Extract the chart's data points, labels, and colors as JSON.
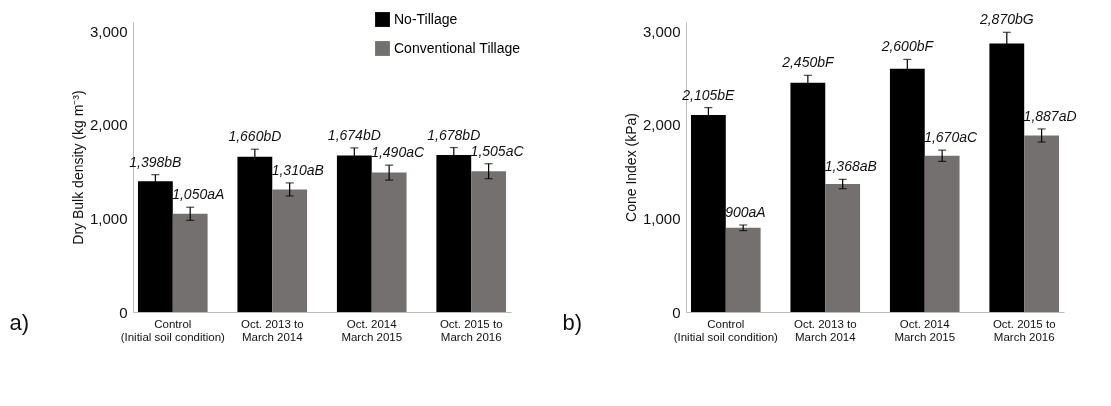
{
  "chart_data": [
    {
      "type": "bar",
      "ylabel": "Dry Bulk density (kg m⁻³)",
      "categories": [
        "Control\n(Initial soil condition)",
        "Oct. 2013 to\nMarch 2014",
        "Oct. 2014\nMarch 2015",
        "Oct. 2015 to\nMarch 2016"
      ],
      "series": [
        {
          "name": "No-Tillage",
          "color": "#000000",
          "values": [
            1398,
            1660,
            1674,
            1678
          ],
          "errors": [
            70,
            80,
            80,
            80
          ],
          "value_labels": [
            "1,398bB",
            "1,660bD",
            "1,674bD",
            "1,678bD"
          ]
        },
        {
          "name": "Conventional Tillage",
          "color": "#757070",
          "values": [
            1050,
            1310,
            1490,
            1505
          ],
          "errors": [
            70,
            70,
            80,
            80
          ],
          "value_labels": [
            "1,050aA",
            "1,310aB",
            "1,490aC",
            "1,505aC"
          ]
        }
      ],
      "ylim": [
        0,
        3100
      ],
      "yticks": [
        {
          "value": 0,
          "label": "0"
        },
        {
          "value": 1000,
          "label": "1,000"
        },
        {
          "value": 2000,
          "label": "2,000"
        },
        {
          "value": 3000,
          "label": "3,000"
        }
      ],
      "grid": false,
      "legend": "top right",
      "annotations": [
        "a)"
      ]
    },
    {
      "type": "bar",
      "ylabel": "Cone Index (kPa)",
      "categories": [
        "Control\n(Initial soil condition)",
        "Oct. 2013 to\nMarch 2014",
        "Oct. 2014\nMarch 2015",
        "Oct. 2015 to\nMarch 2016"
      ],
      "series": [
        {
          "color": "#000000",
          "values": [
            2105,
            2450,
            2600,
            2870
          ],
          "errors": [
            80,
            80,
            100,
            120
          ],
          "value_labels": [
            "2,105bE",
            "2,450bF",
            "2,600bF",
            "2,870bG"
          ]
        },
        {
          "color": "#757070",
          "values": [
            900,
            1368,
            1670,
            1887
          ],
          "errors": [
            30,
            50,
            60,
            70
          ],
          "value_labels": [
            "900aA",
            "1,368aB",
            "1,670aC",
            "1,887aD"
          ]
        }
      ],
      "ylim": [
        0,
        3100
      ],
      "yticks": [
        {
          "value": 0,
          "label": "0"
        },
        {
          "value": 1000,
          "label": "1,000"
        },
        {
          "value": 2000,
          "label": "2,000"
        },
        {
          "value": 3000,
          "label": "3,000"
        }
      ],
      "grid": false,
      "legend": false,
      "annotations": [
        "b)"
      ]
    }
  ]
}
